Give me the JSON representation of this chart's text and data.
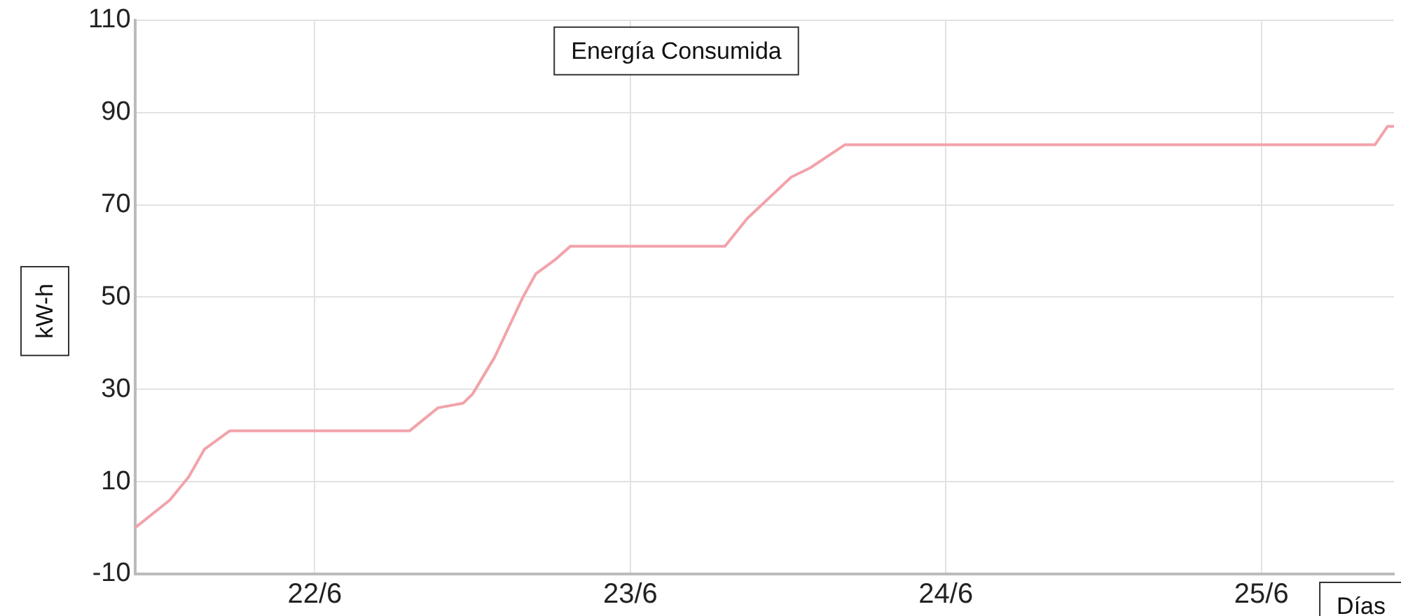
{
  "chart_data": {
    "type": "line",
    "title": "Energía Consumida",
    "xlabel": "Días",
    "ylabel": "kW-h",
    "x": [
      "--06-21T10:19",
      "--06-21T12:58",
      "--06-21T14:24",
      "--06-21T15:36",
      "--06-21T17:31",
      "--06-22T07:12",
      "--06-22T09:22",
      "--06-22T11:17",
      "--06-22T12:00",
      "--06-22T13:41",
      "--06-22T15:50",
      "--06-22T16:48",
      "--06-22T18:14",
      "--06-22T19:26",
      "--06-23T07:12",
      "--06-23T08:53",
      "--06-23T12:14",
      "--06-23T13:41",
      "--06-23T16:19",
      "--06-25T08:38",
      "--06-25T09:36",
      "--06-25T10:05"
    ],
    "series": [
      {
        "color": "#f2a3aa",
        "values": [
          0,
          6,
          11,
          17,
          21,
          21,
          26,
          27,
          29,
          37,
          50,
          55,
          58,
          61,
          61,
          67,
          76,
          78,
          83,
          83,
          87,
          87
        ]
      }
    ],
    "xlim": [
      "--06-21T10:19",
      "--06-25T10:05"
    ],
    "xticks": [
      {
        "value": "--06-22",
        "label": "22/6"
      },
      {
        "value": "--06-23",
        "label": "23/6"
      },
      {
        "value": "--06-24",
        "label": "24/6"
      },
      {
        "value": "--06-25",
        "label": "25/6"
      }
    ],
    "ylim": [
      -10,
      110
    ],
    "yticks": [
      -10,
      10,
      30,
      50,
      70,
      90,
      110
    ],
    "grid": true,
    "marker": "none",
    "line_style": "solid"
  }
}
